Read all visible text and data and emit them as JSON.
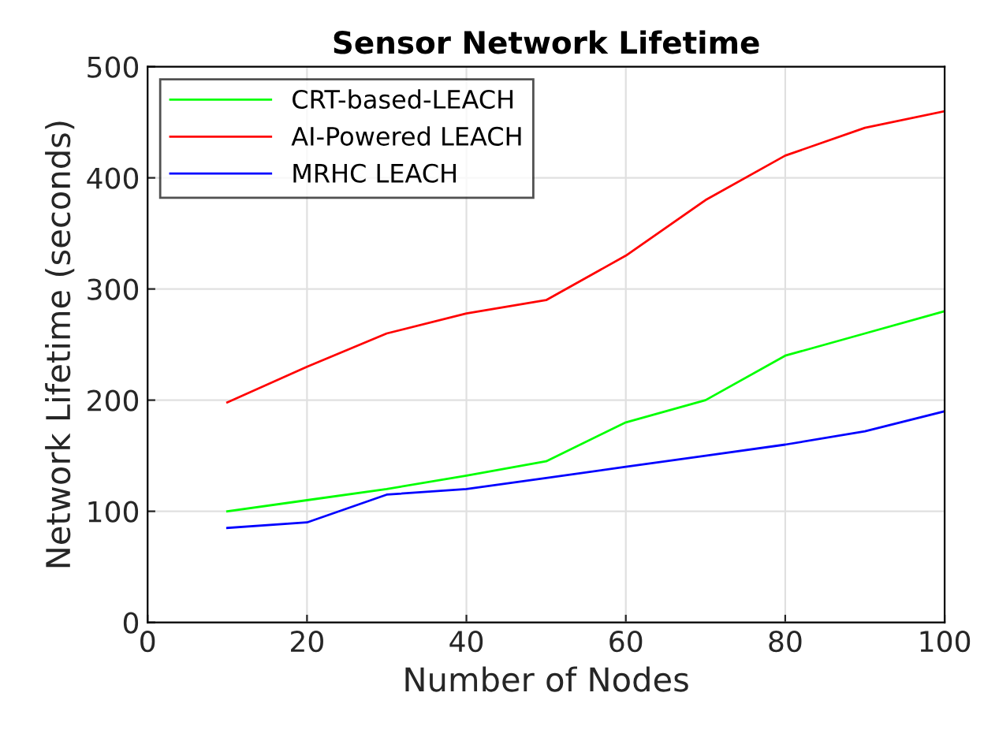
{
  "chart_data": {
    "type": "line",
    "title": "Sensor Network Lifetime",
    "xlabel": "Number of Nodes",
    "ylabel": "Network Lifetime (seconds)",
    "x": [
      10,
      20,
      30,
      40,
      50,
      60,
      70,
      80,
      90,
      100
    ],
    "series": [
      {
        "name": "CRT-based-LEACH",
        "color": "#00ff00",
        "values": [
          100,
          110,
          120,
          132,
          145,
          180,
          200,
          240,
          260,
          280
        ]
      },
      {
        "name": "AI-Powered LEACH",
        "color": "#ff0000",
        "values": [
          198,
          230,
          260,
          278,
          290,
          330,
          380,
          420,
          445,
          460
        ]
      },
      {
        "name": "MRHC LEACH",
        "color": "#0000ff",
        "values": [
          85,
          90,
          115,
          120,
          130,
          140,
          150,
          160,
          172,
          190
        ]
      }
    ],
    "xlim": [
      0,
      100
    ],
    "xticks": [
      0,
      20,
      40,
      60,
      80,
      100
    ],
    "ylim": [
      0,
      500
    ],
    "yticks": [
      0,
      100,
      200,
      300,
      400,
      500
    ],
    "grid": true,
    "legend": "top left"
  }
}
